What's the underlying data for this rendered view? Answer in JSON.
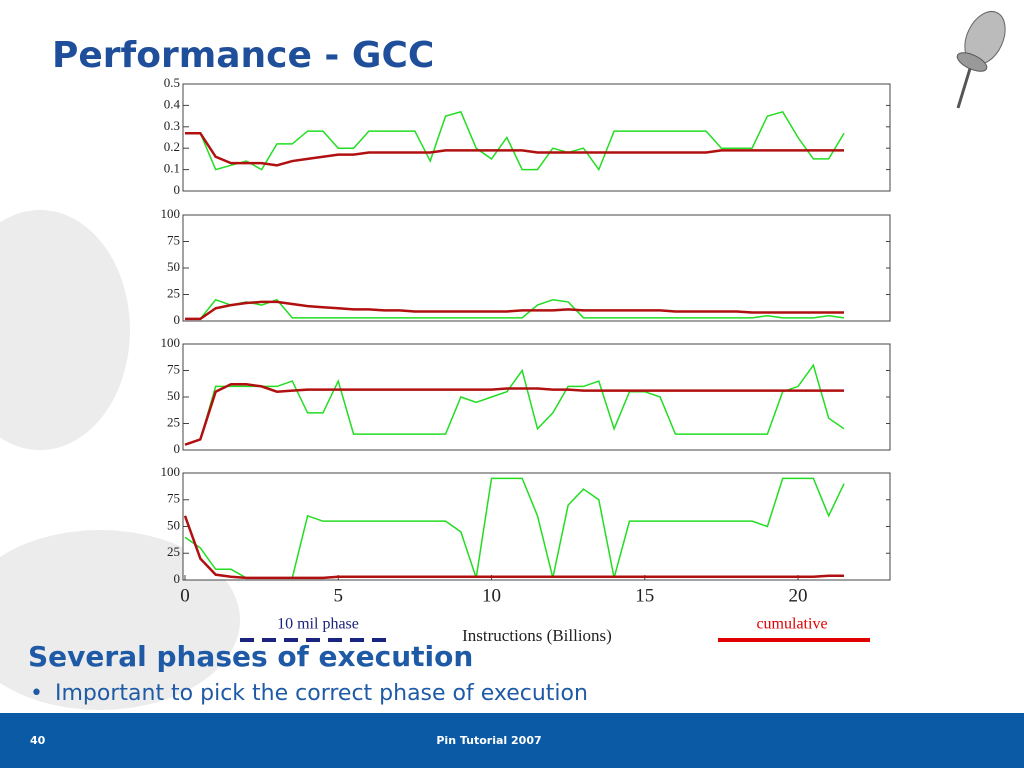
{
  "slide": {
    "title": "Performance - GCC",
    "heading": "Several phases of execution",
    "bullet": "Important to pick the correct phase of execution",
    "page": "40",
    "footer": "Pin Tutorial 2007"
  },
  "legend": [
    {
      "label": "10 mil phase",
      "color": "#1a237e",
      "dashed": true
    },
    {
      "label": "cumulative",
      "color": "#e00000",
      "dashed": false
    }
  ],
  "chart_data": [
    {
      "type": "line",
      "xlim": [
        0,
        23
      ],
      "ylim": [
        0,
        0.5
      ],
      "yticks": [
        0,
        0.1,
        0.2,
        0.3,
        0.4,
        0.5
      ],
      "x": [
        0,
        0.5,
        1,
        1.5,
        2,
        2.5,
        3,
        3.5,
        4,
        4.5,
        5,
        5.5,
        6,
        6.5,
        7,
        7.5,
        8,
        8.5,
        9,
        9.5,
        10,
        10.5,
        11,
        11.5,
        12,
        12.5,
        13,
        13.5,
        14,
        14.5,
        15,
        15.5,
        16,
        16.5,
        17,
        17.5,
        18,
        18.5,
        19,
        19.5,
        20,
        20.5,
        21,
        21.5
      ],
      "series": [
        {
          "color": "#22dd22",
          "values": [
            0.27,
            0.27,
            0.1,
            0.12,
            0.14,
            0.1,
            0.22,
            0.22,
            0.28,
            0.28,
            0.2,
            0.2,
            0.28,
            0.28,
            0.28,
            0.28,
            0.14,
            0.35,
            0.37,
            0.2,
            0.15,
            0.25,
            0.1,
            0.1,
            0.2,
            0.18,
            0.2,
            0.1,
            0.28,
            0.28,
            0.28,
            0.28,
            0.28,
            0.28,
            0.28,
            0.2,
            0.2,
            0.2,
            0.35,
            0.37,
            0.25,
            0.15,
            0.15,
            0.27
          ]
        },
        {
          "color": "#b01010",
          "values": [
            0.27,
            0.27,
            0.16,
            0.13,
            0.13,
            0.13,
            0.12,
            0.14,
            0.15,
            0.16,
            0.17,
            0.17,
            0.18,
            0.18,
            0.18,
            0.18,
            0.18,
            0.19,
            0.19,
            0.19,
            0.19,
            0.19,
            0.19,
            0.18,
            0.18,
            0.18,
            0.18,
            0.18,
            0.18,
            0.18,
            0.18,
            0.18,
            0.18,
            0.18,
            0.18,
            0.19,
            0.19,
            0.19,
            0.19,
            0.19,
            0.19,
            0.19,
            0.19,
            0.19
          ]
        }
      ]
    },
    {
      "type": "line",
      "xlim": [
        0,
        23
      ],
      "ylim": [
        0,
        100
      ],
      "yticks": [
        0,
        25,
        50,
        75,
        100
      ],
      "x": [
        0,
        0.5,
        1,
        1.5,
        2,
        2.5,
        3,
        3.5,
        4,
        4.5,
        5,
        5.5,
        6,
        6.5,
        7,
        7.5,
        8,
        8.5,
        9,
        9.5,
        10,
        10.5,
        11,
        11.5,
        12,
        12.5,
        13,
        13.5,
        14,
        14.5,
        15,
        15.5,
        16,
        16.5,
        17,
        17.5,
        18,
        18.5,
        19,
        19.5,
        20,
        20.5,
        21,
        21.5
      ],
      "series": [
        {
          "color": "#22dd22",
          "values": [
            2,
            2,
            20,
            15,
            18,
            15,
            20,
            3,
            3,
            3,
            3,
            3,
            3,
            3,
            3,
            3,
            3,
            3,
            3,
            3,
            3,
            3,
            3,
            15,
            20,
            18,
            3,
            3,
            3,
            3,
            3,
            3,
            3,
            3,
            3,
            3,
            3,
            3,
            5,
            3,
            3,
            3,
            5,
            3
          ]
        },
        {
          "color": "#b01010",
          "values": [
            2,
            2,
            12,
            15,
            17,
            18,
            18,
            16,
            14,
            13,
            12,
            11,
            11,
            10,
            10,
            9,
            9,
            9,
            9,
            9,
            9,
            9,
            10,
            10,
            10,
            11,
            10,
            10,
            10,
            10,
            10,
            10,
            9,
            9,
            9,
            9,
            9,
            8,
            8,
            8,
            8,
            8,
            8,
            8
          ]
        }
      ]
    },
    {
      "type": "line",
      "xlim": [
        0,
        23
      ],
      "ylim": [
        0,
        100
      ],
      "yticks": [
        0,
        25,
        50,
        75,
        100
      ],
      "x": [
        0,
        0.5,
        1,
        1.5,
        2,
        2.5,
        3,
        3.5,
        4,
        4.5,
        5,
        5.5,
        6,
        6.5,
        7,
        7.5,
        8,
        8.5,
        9,
        9.5,
        10,
        10.5,
        11,
        11.5,
        12,
        12.5,
        13,
        13.5,
        14,
        14.5,
        15,
        15.5,
        16,
        16.5,
        17,
        17.5,
        18,
        18.5,
        19,
        19.5,
        20,
        20.5,
        21,
        21.5
      ],
      "series": [
        {
          "color": "#22dd22",
          "values": [
            5,
            10,
            60,
            60,
            60,
            60,
            60,
            65,
            35,
            35,
            65,
            15,
            15,
            15,
            15,
            15,
            15,
            15,
            50,
            45,
            50,
            55,
            75,
            20,
            35,
            60,
            60,
            65,
            20,
            55,
            55,
            50,
            15,
            15,
            15,
            15,
            15,
            15,
            15,
            55,
            60,
            80,
            30,
            20
          ]
        },
        {
          "color": "#b01010",
          "values": [
            5,
            10,
            55,
            62,
            62,
            60,
            55,
            56,
            57,
            57,
            57,
            57,
            57,
            57,
            57,
            57,
            57,
            57,
            57,
            57,
            57,
            58,
            58,
            58,
            57,
            57,
            56,
            56,
            56,
            56,
            56,
            56,
            56,
            56,
            56,
            56,
            56,
            56,
            56,
            56,
            56,
            56,
            56,
            56
          ]
        }
      ]
    },
    {
      "type": "line",
      "xlim": [
        0,
        23
      ],
      "ylim": [
        0,
        100
      ],
      "yticks": [
        0,
        25,
        50,
        75,
        100
      ],
      "xticks": [
        0,
        5,
        10,
        15,
        20
      ],
      "xlabel": "Instructions (Billions)",
      "x": [
        0,
        0.5,
        1,
        1.5,
        2,
        2.5,
        3,
        3.5,
        4,
        4.5,
        5,
        5.5,
        6,
        6.5,
        7,
        7.5,
        8,
        8.5,
        9,
        9.5,
        10,
        10.5,
        11,
        11.5,
        12,
        12.5,
        13,
        13.5,
        14,
        14.5,
        15,
        15.5,
        16,
        16.5,
        17,
        17.5,
        18,
        18.5,
        19,
        19.5,
        20,
        20.5,
        21,
        21.5
      ],
      "series": [
        {
          "color": "#22dd22",
          "values": [
            40,
            30,
            10,
            10,
            2,
            2,
            2,
            2,
            60,
            55,
            55,
            55,
            55,
            55,
            55,
            55,
            55,
            55,
            45,
            2,
            95,
            95,
            95,
            60,
            2,
            70,
            85,
            75,
            2,
            55,
            55,
            55,
            55,
            55,
            55,
            55,
            55,
            55,
            50,
            95,
            95,
            95,
            60,
            90
          ]
        },
        {
          "color": "#b01010",
          "values": [
            60,
            20,
            5,
            3,
            2,
            2,
            2,
            2,
            2,
            2,
            3,
            3,
            3,
            3,
            3,
            3,
            3,
            3,
            3,
            3,
            3,
            3,
            3,
            3,
            3,
            3,
            3,
            3,
            3,
            3,
            3,
            3,
            3,
            3,
            3,
            3,
            3,
            3,
            3,
            3,
            3,
            3,
            4,
            4
          ]
        }
      ]
    }
  ]
}
